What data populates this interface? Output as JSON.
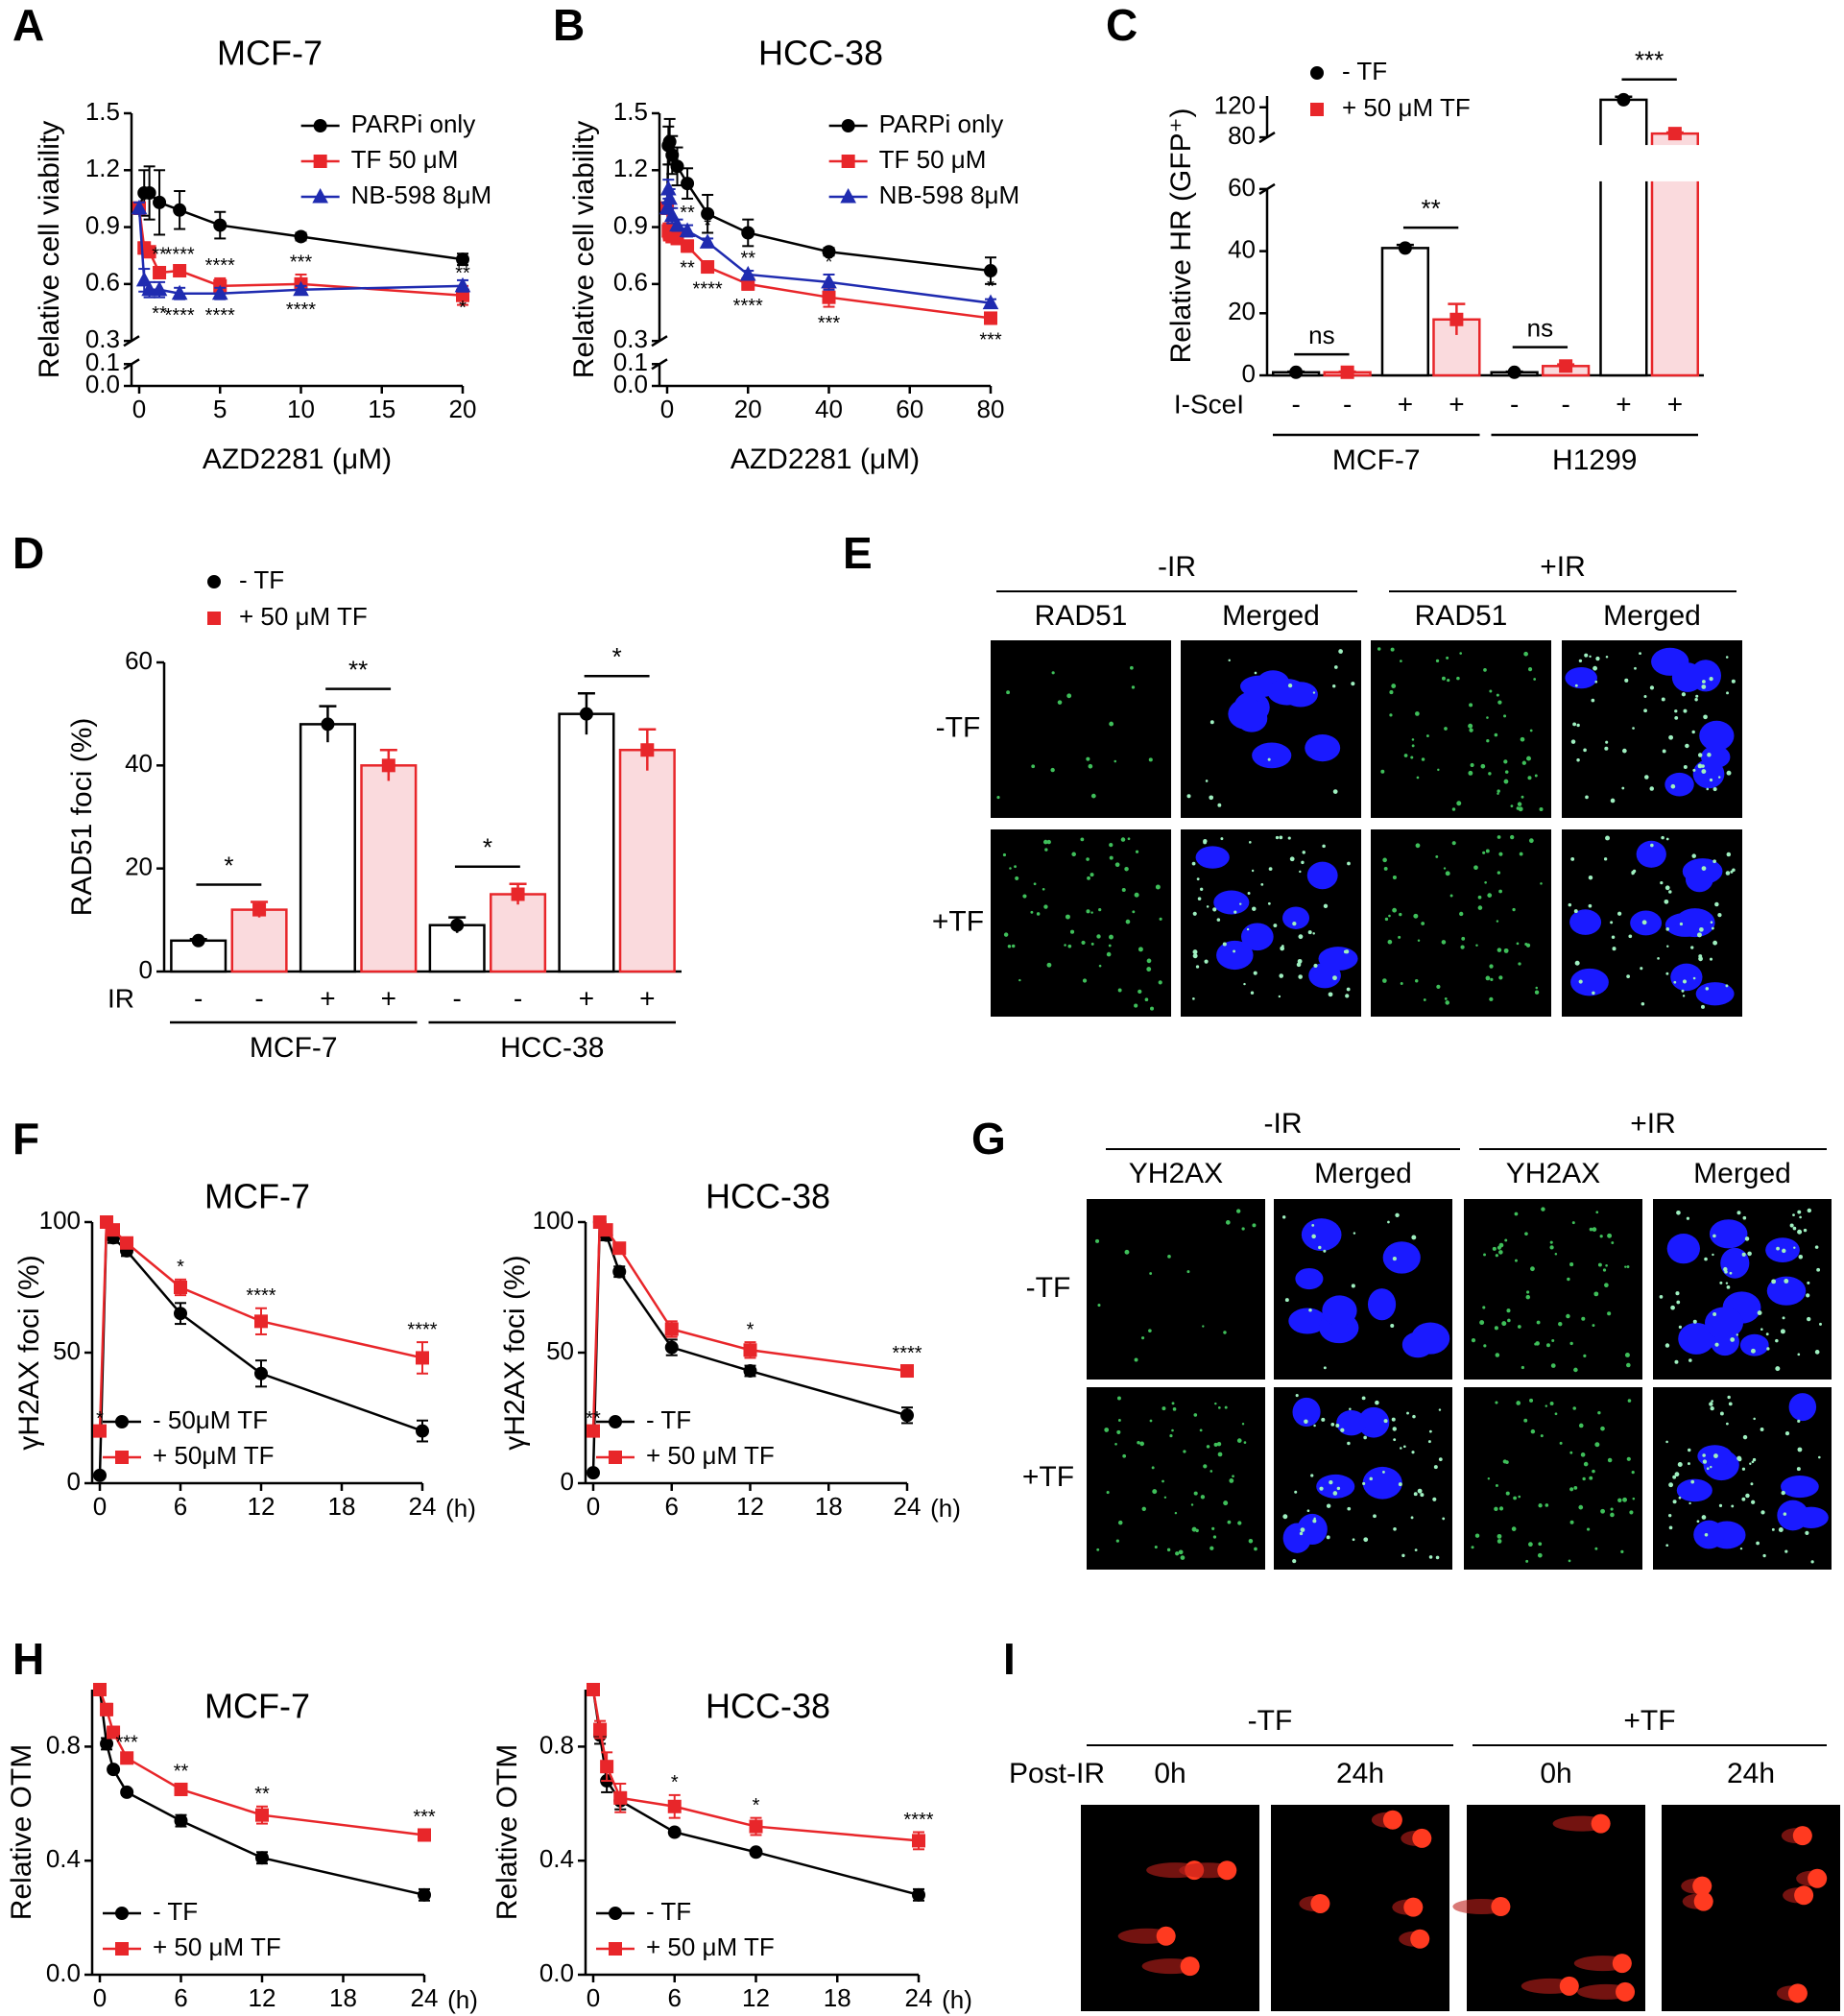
{
  "panel_letters": [
    "A",
    "B",
    "C",
    "D",
    "F",
    "H"
  ],
  "chart_data": [
    {
      "type": "line",
      "title": "MCF-7",
      "xlabel": "AZD2281 (μM)",
      "ylabel": "Relative cell viability",
      "x": [
        0,
        0.31,
        0.63,
        1.25,
        2.5,
        5,
        10,
        20
      ],
      "xlim": [
        0,
        20
      ],
      "xticks": [
        0,
        5,
        10,
        15,
        20
      ],
      "ylim": [
        0,
        1.5
      ],
      "ybreak": [
        0.1,
        0.3
      ],
      "yticks": [
        {
          "value": 0,
          "label": "0.0"
        },
        0.1,
        0.3,
        0.6,
        0.9,
        1.2,
        1.5
      ],
      "legend": "upper right",
      "series": [
        {
          "name": "PARPi only",
          "color": "#000000",
          "marker": "circle",
          "values": [
            1.0,
            1.08,
            1.08,
            1.03,
            0.99,
            0.91,
            0.85,
            0.73
          ],
          "errors": [
            0.03,
            0.12,
            0.14,
            0.17,
            0.1,
            0.07,
            0.02,
            0.03
          ]
        },
        {
          "name": "TF 50 μM",
          "color": "#e8262a",
          "marker": "square",
          "values": [
            1.0,
            0.79,
            0.77,
            0.66,
            0.67,
            0.59,
            0.6,
            0.54
          ],
          "errors": [
            0.03,
            0.03,
            0.02,
            0.03,
            0.02,
            0.04,
            0.05,
            0.05
          ],
          "stars": [
            null,
            null,
            null,
            "**",
            "****",
            "****",
            "***",
            "**"
          ],
          "stars_side": "above"
        },
        {
          "name": "NB-598 8μM",
          "color": "#1f2bb0",
          "marker": "triangle",
          "values": [
            1.0,
            0.62,
            0.57,
            0.57,
            0.55,
            0.55,
            0.57,
            0.59
          ],
          "errors": [
            0.03,
            0.06,
            0.04,
            0.04,
            0.03,
            0.03,
            0.02,
            0.03
          ],
          "stars": [
            null,
            null,
            null,
            "**",
            "****",
            "****",
            "****",
            "*"
          ],
          "stars_side": "below"
        }
      ]
    },
    {
      "type": "line",
      "title": "HCC-38",
      "xlabel": "AZD2281 (μM)",
      "ylabel": "Relative cell viability",
      "x": [
        0,
        0.31,
        0.63,
        1.25,
        2.5,
        5,
        10,
        20,
        40,
        80
      ],
      "xlim": [
        0,
        80
      ],
      "xticks": [
        0,
        20,
        40,
        60,
        80
      ],
      "ylim": [
        0,
        1.5
      ],
      "ybreak": [
        0.1,
        0.3
      ],
      "yticks": [
        {
          "value": 0,
          "label": "0.0"
        },
        0.1,
        0.3,
        0.6,
        0.9,
        1.2,
        1.5
      ],
      "legend": "upper right",
      "series": [
        {
          "name": "PARPi only",
          "color": "#000000",
          "marker": "circle",
          "values": [
            1.0,
            1.33,
            1.35,
            1.28,
            1.22,
            1.13,
            0.97,
            0.87,
            0.77,
            0.67
          ],
          "errors": [
            0.03,
            0.1,
            0.12,
            0.1,
            0.1,
            0.08,
            0.1,
            0.07,
            0.02,
            0.07
          ]
        },
        {
          "name": "TF 50 μM",
          "color": "#e8262a",
          "marker": "square",
          "values": [
            1.0,
            0.88,
            0.86,
            0.85,
            0.84,
            0.8,
            0.69,
            0.6,
            0.53,
            0.42
          ],
          "errors": [
            0.03,
            0.04,
            0.03,
            0.03,
            0.03,
            0.03,
            0.03,
            0.03,
            0.05,
            0.03
          ],
          "stars": [
            null,
            null,
            null,
            null,
            null,
            "**",
            "****",
            "****",
            "***",
            "***"
          ],
          "stars_side": "below"
        },
        {
          "name": "NB-598 8μM",
          "color": "#1f2bb0",
          "marker": "triangle",
          "values": [
            1.0,
            1.1,
            1.05,
            0.96,
            0.91,
            0.88,
            0.82,
            0.65,
            0.61,
            0.5
          ],
          "errors": [
            0.03,
            0.05,
            0.05,
            0.04,
            0.03,
            0.03,
            0.02,
            0.02,
            0.04,
            0.02
          ],
          "stars": [
            null,
            null,
            null,
            null,
            null,
            "**",
            "*",
            "**",
            "*",
            "*"
          ],
          "stars_side": "above"
        }
      ]
    },
    {
      "type": "bar",
      "ylabel": "Relative HR (GFP⁺)",
      "ylim": [
        0,
        135
      ],
      "ybreak": [
        60,
        80
      ],
      "yticks": [
        0,
        20,
        40,
        60,
        80,
        120
      ],
      "legend": "upper left",
      "series": [
        {
          "name": "- TF",
          "color": "#000000",
          "fill": "#ffffff",
          "marker": "circle",
          "values": [
            1,
            41,
            1,
            130
          ],
          "errors": [
            0.2,
            1,
            0.2,
            4
          ]
        },
        {
          "name": "+ 50 μM TF",
          "color": "#e8262a",
          "fill": "#fadadd",
          "marker": "square",
          "values": [
            1,
            18,
            3,
            85
          ],
          "errors": [
            0.2,
            5,
            0.5,
            1.5
          ]
        }
      ],
      "significance": [
        "ns",
        "**",
        "ns",
        "***"
      ],
      "treatment": {
        "label": "I-SceI",
        "values": [
          "-",
          "-",
          "+",
          "+",
          "-",
          "-",
          "+",
          "+"
        ]
      },
      "groups": [
        "MCF-7",
        "H1299"
      ]
    },
    {
      "type": "bar",
      "ylabel": "RAD51 foci (%)",
      "ylim": [
        0,
        60
      ],
      "yticks": [
        0,
        20,
        40,
        60
      ],
      "legend": "upper left",
      "series": [
        {
          "name": "- TF",
          "color": "#000000",
          "fill": "#ffffff",
          "marker": "circle",
          "values": [
            6,
            48,
            9,
            50
          ],
          "errors": [
            0.3,
            3.5,
            1.5,
            4
          ]
        },
        {
          "name": "+ 50 μM TF",
          "color": "#e8262a",
          "fill": "#fadadd",
          "marker": "square",
          "values": [
            12,
            40,
            15,
            43
          ],
          "errors": [
            1.5,
            3,
            2,
            4
          ]
        }
      ],
      "significance": [
        "*",
        "**",
        "*",
        "*"
      ],
      "treatment": {
        "label": "IR",
        "values": [
          "-",
          "-",
          "+",
          "+",
          "-",
          "-",
          "+",
          "+"
        ]
      },
      "groups": [
        "MCF-7",
        "HCC-38"
      ]
    },
    {
      "type": "line",
      "title": "MCF-7",
      "ylabel": "γH2AX foci (%)",
      "xunit": "(h)",
      "x": [
        0,
        0.5,
        1,
        2,
        6,
        12,
        24
      ],
      "xlim": [
        0,
        24
      ],
      "xticks": [
        0,
        6,
        12,
        18,
        24
      ],
      "ylim": [
        0,
        100
      ],
      "yticks": [
        0,
        50,
        100
      ],
      "legend": "lower left",
      "series": [
        {
          "name": "- 50μM TF",
          "color": "#000000",
          "marker": "circle",
          "values": [
            3,
            100,
            94,
            89,
            65,
            42,
            20
          ],
          "errors": [
            0,
            0,
            2,
            2,
            4,
            5,
            4
          ]
        },
        {
          "name": "+ 50μM TF",
          "color": "#e8262a",
          "marker": "square",
          "values": [
            20,
            100,
            97,
            92,
            75,
            62,
            48
          ],
          "errors": [
            0,
            0,
            2,
            2,
            3,
            5,
            6
          ],
          "stars": [
            "*",
            null,
            null,
            null,
            "*",
            "****",
            "****"
          ],
          "stars_side": "above"
        }
      ]
    },
    {
      "type": "line",
      "title": "HCC-38",
      "ylabel": "γH2AX foci (%)",
      "xunit": "(h)",
      "x": [
        0,
        0.5,
        1,
        2,
        6,
        12,
        24
      ],
      "xlim": [
        0,
        24
      ],
      "xticks": [
        0,
        6,
        12,
        18,
        24
      ],
      "ylim": [
        0,
        100
      ],
      "yticks": [
        0,
        50,
        100
      ],
      "legend": "lower left",
      "series": [
        {
          "name": "- TF",
          "color": "#000000",
          "marker": "circle",
          "values": [
            4,
            100,
            95,
            81,
            52,
            43,
            26
          ],
          "errors": [
            0,
            0,
            2,
            2,
            3,
            2,
            3
          ]
        },
        {
          "name": "+ 50 μM TF",
          "color": "#e8262a",
          "marker": "square",
          "values": [
            20,
            100,
            97,
            90,
            59,
            51,
            43
          ],
          "errors": [
            0,
            0,
            2,
            2,
            3,
            3,
            2
          ],
          "stars": [
            "**",
            null,
            null,
            null,
            null,
            "*",
            "****"
          ],
          "stars_side": "above"
        }
      ]
    },
    {
      "type": "line",
      "title": "MCF-7",
      "ylabel": "Relative OTM",
      "xunit": "(h)",
      "x": [
        0,
        0.5,
        1,
        2,
        6,
        12,
        24
      ],
      "xlim": [
        0,
        24
      ],
      "xticks": [
        0,
        6,
        12,
        18,
        24
      ],
      "ylim": [
        0,
        1.0
      ],
      "yticks": [
        {
          "value": 0,
          "label": "0.0"
        },
        0.4,
        0.8
      ],
      "legend": "lower left",
      "series": [
        {
          "name": "- TF",
          "color": "#000000",
          "marker": "circle",
          "values": [
            1.0,
            0.81,
            0.72,
            0.64,
            0.54,
            0.41,
            0.28
          ],
          "errors": [
            0.01,
            0.02,
            0.01,
            0.01,
            0.02,
            0.02,
            0.02
          ]
        },
        {
          "name": "+ 50 μM TF",
          "color": "#e8262a",
          "marker": "square",
          "values": [
            1.0,
            0.93,
            0.85,
            0.76,
            0.65,
            0.56,
            0.49
          ],
          "errors": [
            0.01,
            0.02,
            0.02,
            0.01,
            0.02,
            0.03,
            0.02
          ],
          "stars": [
            null,
            null,
            null,
            "***",
            "**",
            "**",
            "***"
          ],
          "stars_side": "above"
        }
      ]
    },
    {
      "type": "line",
      "title": "HCC-38",
      "ylabel": "Relative OTM",
      "xunit": "(h)",
      "x": [
        0,
        0.5,
        1,
        2,
        6,
        12,
        24
      ],
      "xlim": [
        0,
        24
      ],
      "xticks": [
        0,
        6,
        12,
        18,
        24
      ],
      "ylim": [
        0,
        1.0
      ],
      "yticks": [
        {
          "value": 0,
          "label": "0.0"
        },
        0.4,
        0.8
      ],
      "legend": "lower left",
      "series": [
        {
          "name": "- TF",
          "color": "#000000",
          "marker": "circle",
          "values": [
            1.0,
            0.84,
            0.68,
            0.61,
            0.5,
            0.43,
            0.28
          ],
          "errors": [
            0.01,
            0.03,
            0.04,
            0.03,
            0.01,
            0.01,
            0.02
          ]
        },
        {
          "name": "+ 50 μM TF",
          "color": "#e8262a",
          "marker": "square",
          "values": [
            1.0,
            0.86,
            0.73,
            0.62,
            0.59,
            0.52,
            0.47
          ],
          "errors": [
            0.01,
            0.03,
            0.05,
            0.05,
            0.04,
            0.03,
            0.03
          ],
          "stars": [
            null,
            null,
            null,
            null,
            "*",
            "*",
            "****"
          ],
          "stars_side": "above"
        }
      ]
    }
  ],
  "image_panels": [
    {
      "letter": "E",
      "headers": [
        "-IR",
        "+IR"
      ],
      "columns": [
        "RAD51",
        "Merged",
        "RAD51",
        "Merged"
      ],
      "rows": [
        "-TF",
        "+TF"
      ]
    },
    {
      "letter": "G",
      "headers": [
        "-IR",
        "+IR"
      ],
      "columns": [
        "YH2AX",
        "Merged",
        "YH2AX",
        "Merged"
      ],
      "rows": [
        "-TF",
        "+TF"
      ]
    },
    {
      "letter": "I",
      "headers": [
        "-TF",
        "+TF"
      ],
      "row_label": "Post-IR",
      "columns": [
        "0h",
        "24h",
        "0h",
        "24h"
      ]
    }
  ]
}
